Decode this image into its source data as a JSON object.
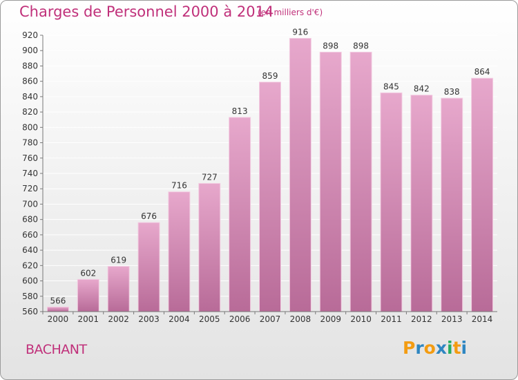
{
  "title": "Charges de Personnel 2000 à 2014",
  "unit": "(en milliers d'€)",
  "place": "BACHANT",
  "logo": {
    "letters": [
      "P",
      "r",
      "o",
      "x",
      "i",
      "t",
      "i"
    ],
    "colors": [
      "#f39c12",
      "#2e86c1",
      "#f39c12",
      "#2e86c1",
      "#27ae60",
      "#f39c12",
      "#2e86c1"
    ]
  },
  "colors": {
    "bar_top": "#e7a8cc",
    "bar_bottom": "#b86b98",
    "bar_edge": "#f3cde2",
    "grid": "#ffffff",
    "axis": "#777777",
    "title": "#c0307a"
  },
  "chart_data": {
    "type": "bar",
    "categories": [
      "2000",
      "2001",
      "2002",
      "2003",
      "2004",
      "2005",
      "2006",
      "2007",
      "2008",
      "2009",
      "2010",
      "2011",
      "2012",
      "2013",
      "2014"
    ],
    "values": [
      566,
      602,
      619,
      676,
      716,
      727,
      813,
      859,
      916,
      898,
      898,
      845,
      842,
      838,
      864
    ],
    "title": "Charges de Personnel 2000 à 2014",
    "ylabel": "",
    "xlabel": "",
    "ylim": [
      560,
      920
    ],
    "yticks": [
      560,
      580,
      600,
      620,
      640,
      660,
      680,
      700,
      720,
      740,
      760,
      780,
      800,
      820,
      840,
      860,
      880,
      900,
      920
    ],
    "grid": true,
    "data_labels": true
  }
}
